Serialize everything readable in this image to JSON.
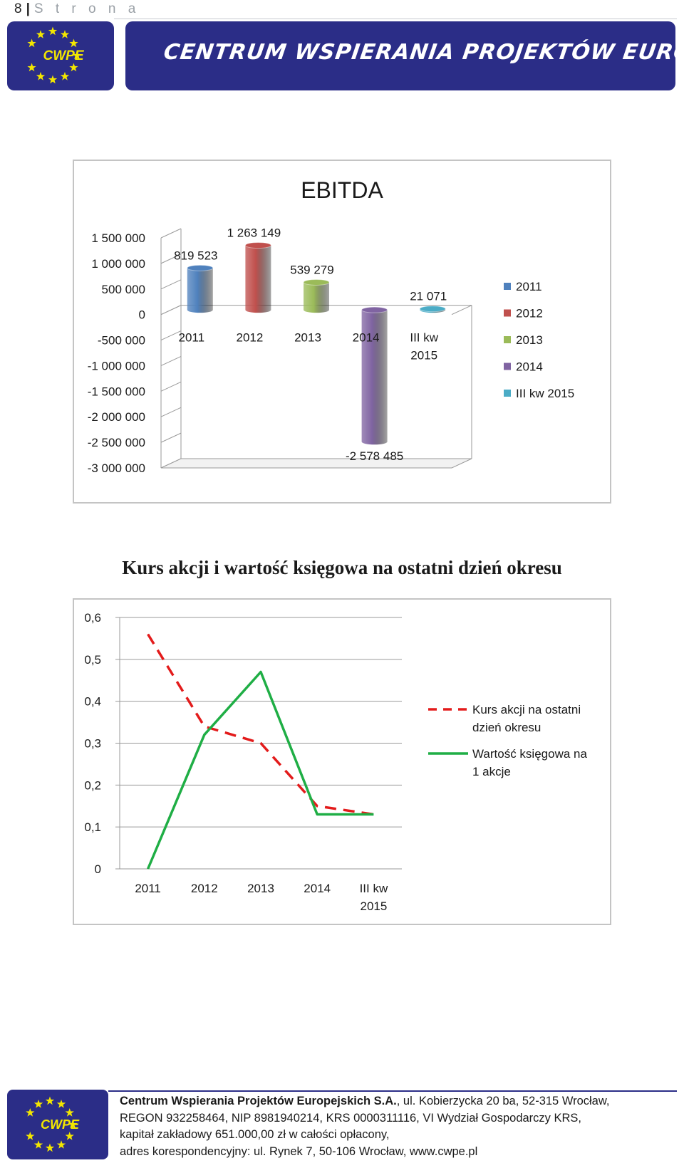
{
  "page_header": {
    "number": "8",
    "separator": "|",
    "word": "S t r o n a"
  },
  "header": {
    "logo_text": "CWPE",
    "banner_text": "Centrum Wspierania Projektów Europejskich S.A."
  },
  "colors": {
    "brand_navy": "#2b2d87",
    "star_yellow": "#f3e600",
    "series_2011": "#4f81bd",
    "series_2012": "#c0504d",
    "series_2013": "#9bbb59",
    "series_2014": "#8064a2",
    "series_iii_kw_2015": "#4bacc6",
    "line_kurs": "#e31b1b",
    "line_wartosc": "#1fae45"
  },
  "chart_data": [
    {
      "type": "bar",
      "title": "EBITDA",
      "categories": [
        "2011",
        "2012",
        "2013",
        "2014",
        "III kw 2015"
      ],
      "category_lines": [
        [
          "2011"
        ],
        [
          "2012"
        ],
        [
          "2013"
        ],
        [
          "2014"
        ],
        [
          "III kw",
          "2015"
        ]
      ],
      "values": [
        819523,
        1263149,
        539279,
        -2578485,
        21071
      ],
      "data_labels": [
        "819 523",
        "1 263 149",
        "539 279",
        "-2 578 485",
        "21 071"
      ],
      "ylim": [
        -3000000,
        1500000
      ],
      "yticks": [
        1500000,
        1000000,
        500000,
        0,
        -500000,
        -1000000,
        -1500000,
        -2000000,
        -2500000,
        -3000000
      ],
      "ytick_labels": [
        "1 500 000",
        "1 000 000",
        "500 000",
        "0",
        "-500 000",
        "-1 000 000",
        "-1 500 000",
        "-2 000 000",
        "-2 500 000",
        "-3 000 000"
      ],
      "legend": [
        "2011",
        "2012",
        "2013",
        "2014",
        "III kw 2015"
      ],
      "legend_position": "right",
      "style": "3d-cylinder"
    },
    {
      "type": "line",
      "title": "Kurs akcji i wartość księgowa na ostatni dzień okresu",
      "categories": [
        "2011",
        "2012",
        "2013",
        "2014",
        "III kw 2015"
      ],
      "category_lines": [
        [
          "2011"
        ],
        [
          "2012"
        ],
        [
          "2013"
        ],
        [
          "2014"
        ],
        [
          "III kw",
          "2015"
        ]
      ],
      "series": [
        {
          "name": "Kurs akcji na ostatni dzień okresu",
          "name_lines": [
            "Kurs akcji na ostatni",
            "dzień okresu"
          ],
          "values": [
            0.56,
            0.34,
            0.3,
            0.15,
            0.13
          ],
          "dash": true
        },
        {
          "name": "Wartość księgowa na 1 akcje",
          "name_lines": [
            "Wartość księgowa na",
            "1 akcje"
          ],
          "values": [
            0.0,
            0.32,
            0.47,
            0.13,
            0.13
          ],
          "dash": false
        }
      ],
      "ylim": [
        0,
        0.6
      ],
      "yticks": [
        0,
        0.1,
        0.2,
        0.3,
        0.4,
        0.5,
        0.6
      ],
      "ytick_labels": [
        "0",
        "0,1",
        "0,2",
        "0,3",
        "0,4",
        "0,5",
        "0,6"
      ],
      "grid": true,
      "legend_position": "right"
    }
  ],
  "footer": {
    "logo_text": "CWPE",
    "company": "Centrum Wspierania Projektów Europejskich S.A.",
    "line1_rest": ", ul. Kobierzycka 20 ba, 52-315 Wrocław,",
    "line2": "REGON 932258464, NIP 8981940214, KRS 0000311116, VI Wydział Gospodarczy KRS,",
    "line3": "kapitał zakładowy 651.000,00 zł w całości opłacony,",
    "line4": "adres korespondencyjny: ul. Rynek 7, 50-106 Wrocław, www.cwpe.pl"
  }
}
